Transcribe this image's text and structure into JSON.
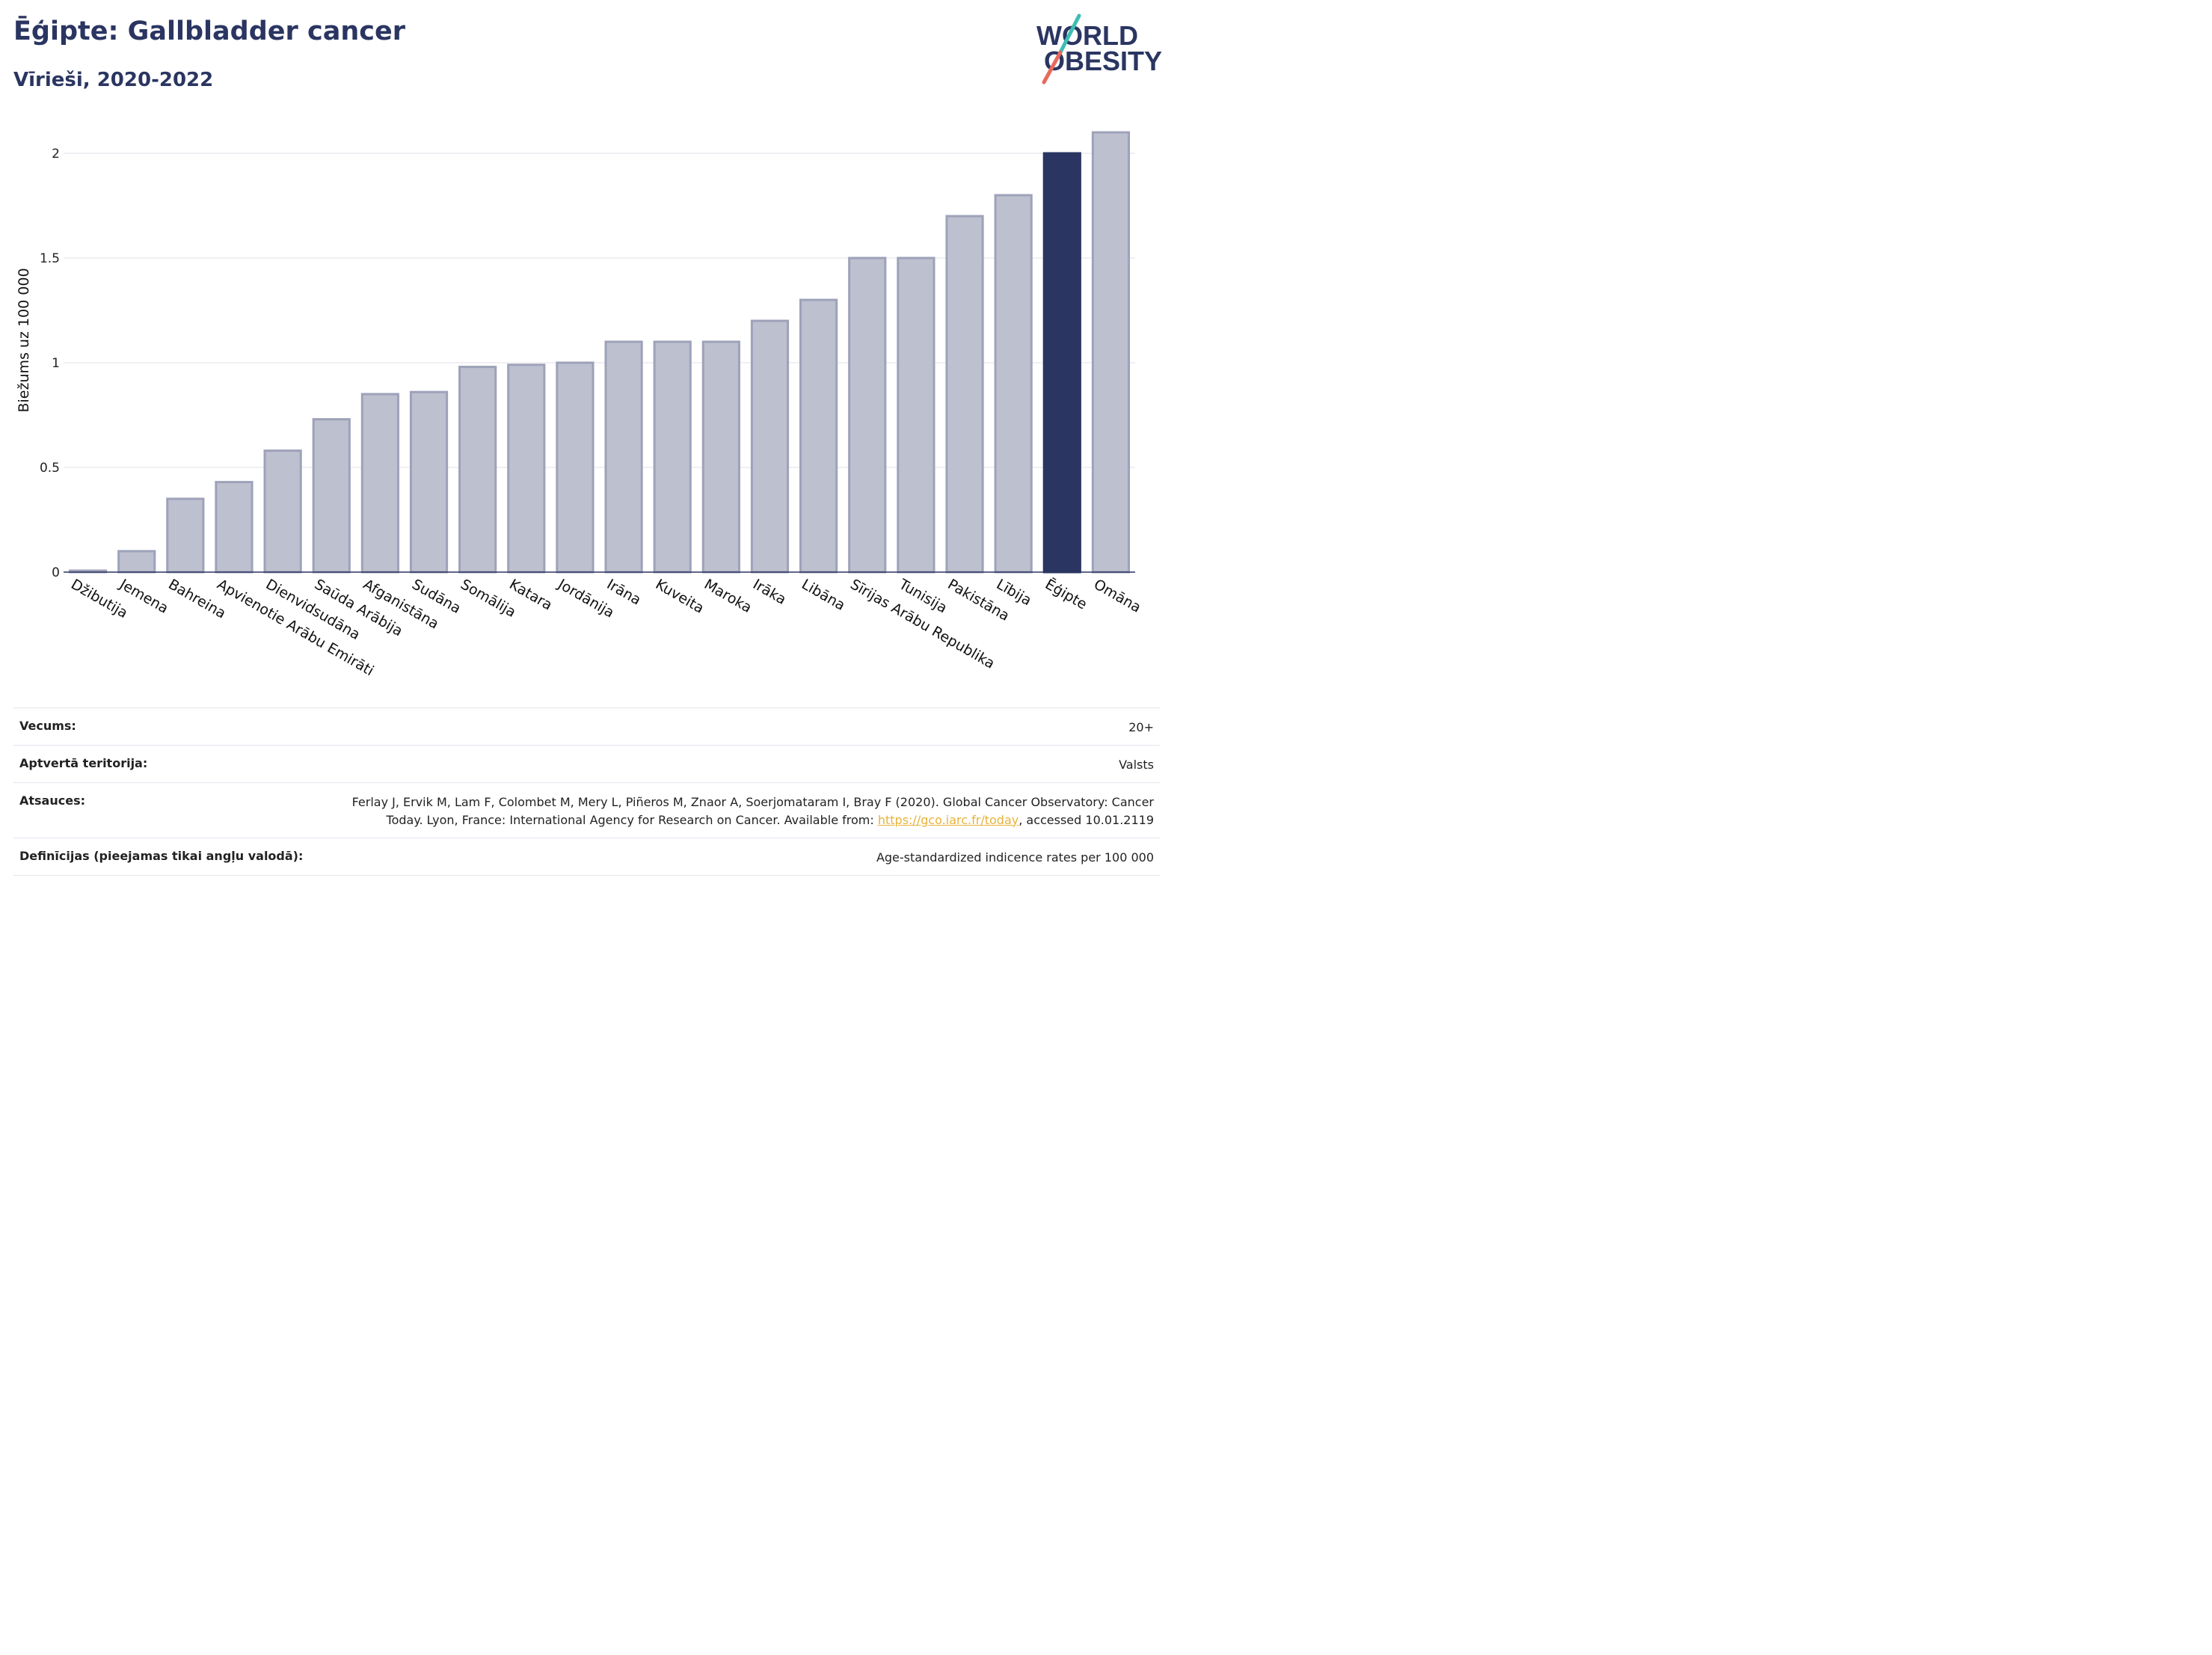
{
  "header": {
    "title": "Ēģipte: Gallbladder cancer",
    "subtitle": "Vīrieši, 2020-2022"
  },
  "logo": {
    "line1": "WORLD",
    "line2": "OBESITY",
    "accent_colors": [
      "#3ebdb3",
      "#e8695c"
    ]
  },
  "colors": {
    "bar_default": "#bdc0cf",
    "bar_default_border": "#9ea2b9",
    "bar_highlight": "#2a3561",
    "grid": "#e6e8ee",
    "text": "#2a3561",
    "link": "#e8b23a"
  },
  "chart_data": {
    "type": "bar",
    "title": "Ēģipte: Gallbladder cancer",
    "subtitle": "Vīrieši, 2020-2022",
    "xlabel": "",
    "ylabel": "Biežums uz 100 000",
    "ylim": [
      0,
      2.1
    ],
    "yticks": [
      0,
      0.5,
      1,
      1.5,
      2
    ],
    "ytick_labels": [
      "0",
      "0.5",
      "1",
      "1.5",
      "2"
    ],
    "grid": true,
    "highlight": "Ēģipte",
    "categories": [
      "Džibutija",
      "Jemena",
      "Bahreina",
      "Apvienotie Arābu Emirāti",
      "Dienvidsudāna",
      "Saūda Arābija",
      "Afganistāna",
      "Sudāna",
      "Somālija",
      "Katara",
      "Jordānija",
      "Irāna",
      "Kuveita",
      "Maroka",
      "Irāka",
      "Libāna",
      "Sīrijas Arābu Republika",
      "Tunisija",
      "Pakistāna",
      "Lībija",
      "Ēģipte",
      "Omāna"
    ],
    "values": [
      0.005,
      0.1,
      0.35,
      0.43,
      0.58,
      0.73,
      0.85,
      0.86,
      0.98,
      0.99,
      1.0,
      1.1,
      1.1,
      1.1,
      1.2,
      1.3,
      1.5,
      1.5,
      1.7,
      1.8,
      2.0,
      2.1
    ]
  },
  "meta": {
    "age_label": "Vecums:",
    "age_value": "20+",
    "territory_label": "Aptvertā teritorija:",
    "territory_value": "Valsts",
    "references_label": "Atsauces:",
    "references_text": "Ferlay J, Ervik M, Lam F, Colombet M, Mery L, Piñeros M, Znaor A, Soerjomataram I, Bray F (2020). Global Cancer Observatory: Cancer Today. Lyon, France: International Agency for Research on Cancer. Available from: ",
    "references_link": "https://gco.iarc.fr/today",
    "references_suffix": ", accessed 10.01.2119",
    "definitions_label": "Definīcijas (pieejamas tikai angļu valodā):",
    "definitions_value": "Age-standardized indicence rates per 100 000"
  }
}
